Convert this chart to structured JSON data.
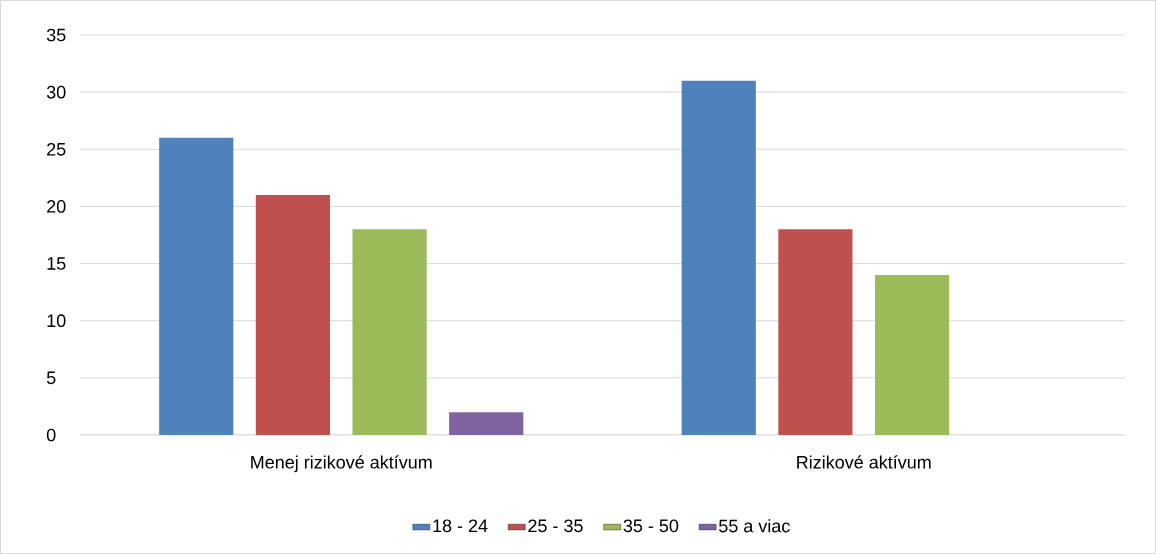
{
  "chart_data": {
    "type": "bar",
    "categories": [
      "Menej rizikové aktívum",
      "Rizikové aktívum"
    ],
    "series": [
      {
        "name": "18 - 24",
        "color": "#4f81bd",
        "values": [
          26,
          31
        ]
      },
      {
        "name": "25 - 35",
        "color": "#c0504d",
        "values": [
          21,
          18
        ]
      },
      {
        "name": "35 - 50",
        "color": "#9bbb59",
        "values": [
          18,
          14
        ]
      },
      {
        "name": "55 a viac",
        "color": "#8064a2",
        "values": [
          2,
          null
        ]
      }
    ],
    "ylim": [
      0,
      35
    ],
    "yticks": [
      0,
      5,
      10,
      15,
      20,
      25,
      30,
      35
    ],
    "grid": "y",
    "legend": "bottom"
  }
}
